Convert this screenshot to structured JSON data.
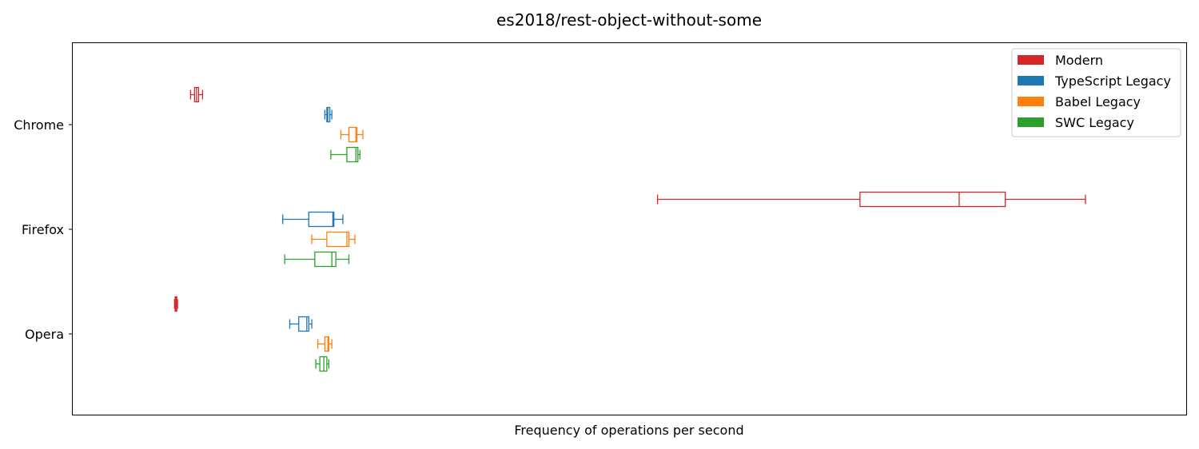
{
  "chart_data": {
    "type": "boxplot",
    "orientation": "horizontal",
    "title": "es2018/rest-object-without-some",
    "xlabel": "Frequency of operations per second",
    "ylabel": "",
    "x_ticks_shown": false,
    "xlim": [
      0,
      1000
    ],
    "categories": [
      "Chrome",
      "Firefox",
      "Opera"
    ],
    "legend": {
      "placement": "top-right"
    },
    "series": [
      {
        "name": "Modern",
        "color": "#d62728",
        "boxes": [
          {
            "category": "Chrome",
            "whislo": 62,
            "q1": 66,
            "med": 68,
            "q3": 70,
            "whishi": 74
          },
          {
            "category": "Firefox",
            "whislo": 528,
            "q1": 730,
            "med": 829,
            "q3": 875,
            "whishi": 955
          },
          {
            "category": "Opera",
            "whislo": 46,
            "q1": 46.6,
            "med": 47.5,
            "q3": 48.3,
            "whishi": 49
          }
        ]
      },
      {
        "name": "TypeScript Legacy",
        "color": "#1f77b4",
        "boxes": [
          {
            "category": "Chrome",
            "whislo": 196,
            "q1": 198,
            "med": 199,
            "q3": 201,
            "whishi": 203
          },
          {
            "category": "Firefox",
            "whislo": 154,
            "q1": 180,
            "med": 204,
            "q3": 205,
            "whishi": 214
          },
          {
            "category": "Opera",
            "whislo": 161,
            "q1": 170,
            "med": 178,
            "q3": 180,
            "whishi": 183
          }
        ]
      },
      {
        "name": "Babel Legacy",
        "color": "#ff7f0e",
        "boxes": [
          {
            "category": "Chrome",
            "whislo": 212,
            "q1": 220,
            "med": 227,
            "q3": 228,
            "whishi": 234
          },
          {
            "category": "Firefox",
            "whislo": 183,
            "q1": 198,
            "med": 218,
            "q3": 220,
            "whishi": 226
          },
          {
            "category": "Opera",
            "whislo": 189,
            "q1": 196,
            "med": 199,
            "q3": 200,
            "whishi": 203
          }
        ]
      },
      {
        "name": "SWC Legacy",
        "color": "#2ca02c",
        "boxes": [
          {
            "category": "Chrome",
            "whislo": 202,
            "q1": 218,
            "med": 227,
            "q3": 229,
            "whishi": 231
          },
          {
            "category": "Firefox",
            "whislo": 156,
            "q1": 186,
            "med": 203,
            "q3": 207,
            "whishi": 220
          },
          {
            "category": "Opera",
            "whislo": 187,
            "q1": 191,
            "med": 195,
            "q3": 198,
            "whishi": 200
          }
        ]
      }
    ]
  }
}
